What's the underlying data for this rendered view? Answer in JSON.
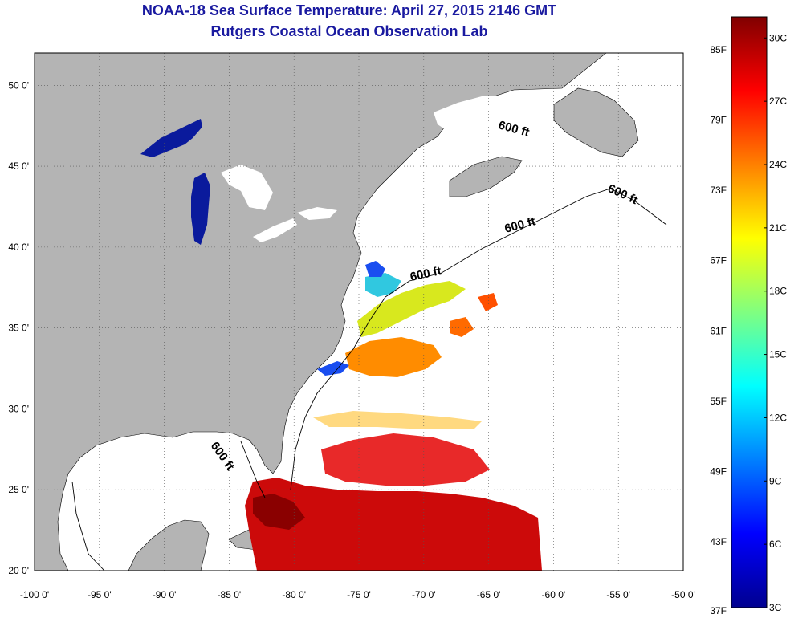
{
  "title": "NOAA-18 Sea Surface Temperature:  April 27, 2015 2146 GMT",
  "subtitle": "Rutgers Coastal Ocean Observation Lab",
  "map": {
    "lon_range": [
      -100,
      -50
    ],
    "lat_range": [
      20,
      52
    ],
    "lon_ticks": [
      "-100 0'",
      "-95 0'",
      "-90 0'",
      "-85 0'",
      "-80 0'",
      "-75 0'",
      "-70 0'",
      "-65 0'",
      "-60 0'",
      "-55 0'",
      "-50 0'"
    ],
    "lat_ticks": [
      "20 0'",
      "25 0'",
      "30 0'",
      "35 0'",
      "40 0'",
      "45 0'",
      "50 0'"
    ],
    "land_color": "#b4b4b4",
    "no_data_color": "#ffffff",
    "grid": "dotted",
    "contour_labels": [
      "600 ft",
      "600 ft",
      "600 ft",
      "600 ft",
      "600 ft"
    ]
  },
  "colorbar": {
    "min_c": 3,
    "max_c": 31,
    "fahrenheit_labels": [
      "85F",
      "79F",
      "73F",
      "67F",
      "61F",
      "55F",
      "49F",
      "43F",
      "37F"
    ],
    "celsius_labels": [
      "30C",
      "27C",
      "24C",
      "21C",
      "18C",
      "15C",
      "12C",
      "9C",
      "6C",
      "3C"
    ],
    "colors": [
      "#00008f",
      "#0000ff",
      "#0080ff",
      "#00ffff",
      "#80ff80",
      "#ffff00",
      "#ff8000",
      "#ff0000",
      "#800000"
    ]
  }
}
